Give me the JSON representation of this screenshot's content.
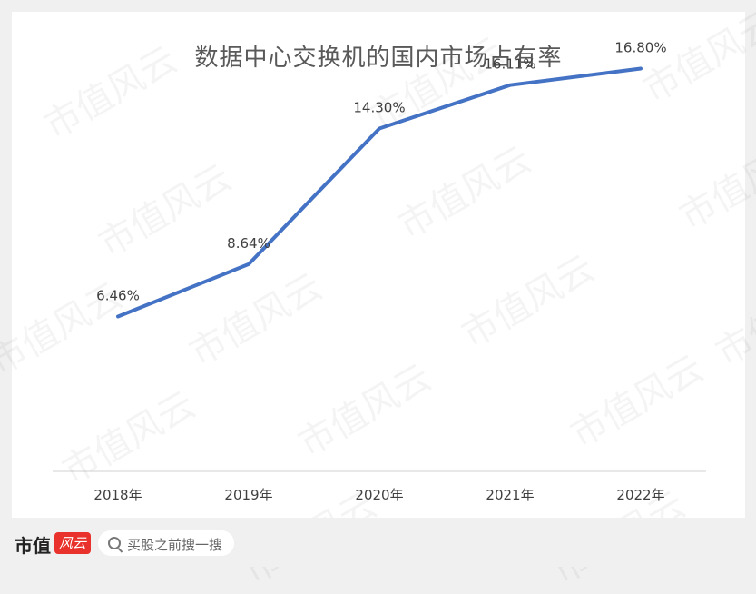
{
  "chart_data": {
    "type": "line",
    "title": "数据中心交换机的国内市场占有率",
    "categories": [
      "2018年",
      "2019年",
      "2020年",
      "2021年",
      "2022年"
    ],
    "series": [
      {
        "values": [
          6.46,
          8.64,
          14.3,
          16.11,
          16.8
        ],
        "labels": [
          "6.46%",
          "8.64%",
          "14.30%",
          "16.11%",
          "16.80%"
        ],
        "color": "#4472c4"
      }
    ],
    "ylim": [
      0,
      20
    ],
    "grid": false,
    "legend": "none"
  },
  "watermark": "市值风云",
  "footer": {
    "logo_text": "市值",
    "logo_badge": "风云",
    "search_placeholder": "买股之前搜一搜",
    "search_icon": "search-icon"
  }
}
